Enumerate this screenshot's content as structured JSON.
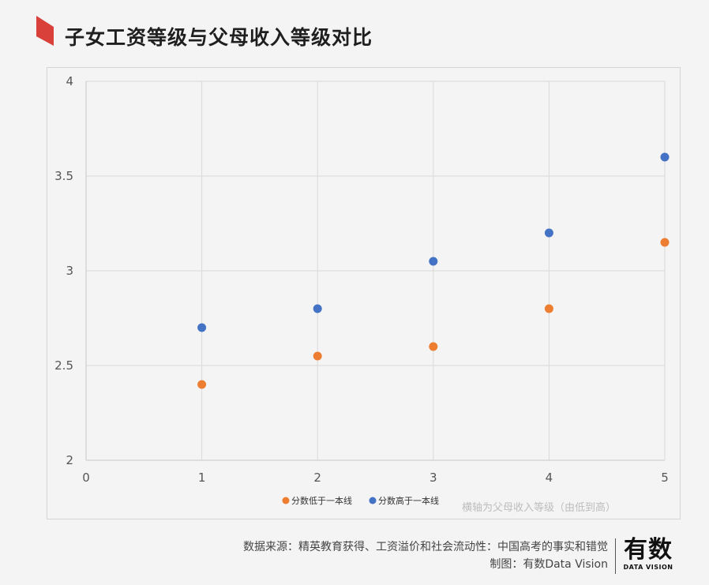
{
  "header": {
    "title": "子女工资等级与父母收入等级对比",
    "marker_color": "#d9403a"
  },
  "chart_data": {
    "type": "scatter",
    "xlim": [
      0,
      5
    ],
    "ylim": [
      2,
      4
    ],
    "x_ticks": [
      "0",
      "1",
      "2",
      "3",
      "4",
      "5"
    ],
    "y_ticks": [
      "2",
      "2.5",
      "3",
      "3.5",
      "4"
    ],
    "grid": true,
    "legend_position": "bottom",
    "x_axis_note": "横轴为父母收入等级（由低到高）",
    "series": [
      {
        "name": "分数低于一本线",
        "color": "#ed7d31",
        "x": [
          1,
          2,
          3,
          4,
          5
        ],
        "y": [
          2.4,
          2.55,
          2.6,
          2.8,
          3.15
        ]
      },
      {
        "name": "分数高于一本线",
        "color": "#4472c4",
        "x": [
          1,
          2,
          3,
          4,
          5
        ],
        "y": [
          2.7,
          2.8,
          3.05,
          3.2,
          3.6
        ]
      }
    ]
  },
  "footer": {
    "source": "数据来源：精英教育获得、工资溢价和社会流动性：中国高考的事实和错觉",
    "credit": "制图：有数Data Vision",
    "logo_main": "有数",
    "logo_sub": "DATA VISION"
  }
}
